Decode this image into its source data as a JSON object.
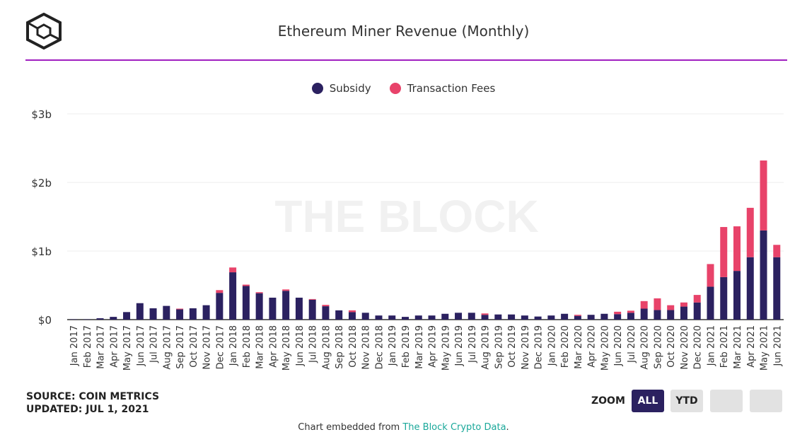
{
  "title": "Ethereum Miner Revenue (Monthly)",
  "watermark": "THE BLOCK",
  "source": "SOURCE: COIN METRICS",
  "updated": "UPDATED: JUL 1, 2021",
  "zoom": {
    "label": "ZOOM",
    "buttons": [
      "ALL",
      "YTD",
      "",
      ""
    ],
    "active": "ALL"
  },
  "footer": {
    "prefix": "Chart embedded from ",
    "link": "The Block Crypto Data",
    "suffix": "."
  },
  "colors": {
    "subsidy": "#2b2160",
    "fees": "#e8436a",
    "rule": "#a020c0"
  },
  "chart_data": {
    "type": "bar",
    "stacked": true,
    "title": "Ethereum Miner Revenue (Monthly)",
    "legend_position": "top",
    "grid": true,
    "ylim": [
      0,
      3
    ],
    "y_ticks": [
      "$0",
      "$1b",
      "$2b",
      "$3b"
    ],
    "categories": [
      "Jan 2017",
      "Feb 2017",
      "Mar 2017",
      "Apr 2017",
      "May 2017",
      "Jun 2017",
      "Jul 2017",
      "Aug 2017",
      "Sep 2017",
      "Oct 2017",
      "Nov 2017",
      "Dec 2017",
      "Jan 2018",
      "Feb 2018",
      "Mar 2018",
      "Apr 2018",
      "May 2018",
      "Jun 2018",
      "Jul 2018",
      "Aug 2018",
      "Sep 2018",
      "Oct 2018",
      "Nov 2018",
      "Dec 2018",
      "Jan 2019",
      "Feb 2019",
      "Mar 2019",
      "Apr 2019",
      "May 2019",
      "Jun 2019",
      "Jul 2019",
      "Aug 2019",
      "Sep 2019",
      "Oct 2019",
      "Nov 2019",
      "Dec 2019",
      "Jan 2020",
      "Feb 2020",
      "Mar 2020",
      "Apr 2020",
      "May 2020",
      "Jun 2020",
      "Jul 2020",
      "Aug 2020",
      "Sep 2020",
      "Oct 2020",
      "Nov 2020",
      "Dec 2020",
      "Jan 2021",
      "Feb 2021",
      "Mar 2021",
      "Apr 2021",
      "May 2021",
      "Jun 2021"
    ],
    "series": [
      {
        "name": "Subsidy",
        "values": [
          0.005,
          0.005,
          0.02,
          0.04,
          0.11,
          0.24,
          0.165,
          0.2,
          0.15,
          0.165,
          0.21,
          0.39,
          0.69,
          0.49,
          0.385,
          0.32,
          0.42,
          0.32,
          0.29,
          0.195,
          0.135,
          0.11,
          0.1,
          0.06,
          0.06,
          0.04,
          0.06,
          0.06,
          0.085,
          0.1,
          0.1,
          0.07,
          0.075,
          0.075,
          0.06,
          0.045,
          0.06,
          0.085,
          0.055,
          0.07,
          0.085,
          0.08,
          0.1,
          0.16,
          0.14,
          0.14,
          0.19,
          0.25,
          0.48,
          0.62,
          0.71,
          0.91,
          1.3,
          0.91
        ]
      },
      {
        "name": "Transaction Fees",
        "values": [
          0,
          0,
          0,
          0,
          0,
          0,
          0,
          0,
          0.01,
          0,
          0,
          0.04,
          0.07,
          0.02,
          0.015,
          0,
          0.02,
          0,
          0.01,
          0.02,
          0,
          0.025,
          0,
          0,
          0,
          0,
          0,
          0,
          0,
          0,
          0,
          0.02,
          0,
          0,
          0,
          0,
          0,
          0,
          0.015,
          0,
          0,
          0.035,
          0.03,
          0.11,
          0.17,
          0.07,
          0.06,
          0.11,
          0.33,
          0.73,
          0.65,
          0.72,
          1.02,
          0.18
        ]
      }
    ]
  }
}
